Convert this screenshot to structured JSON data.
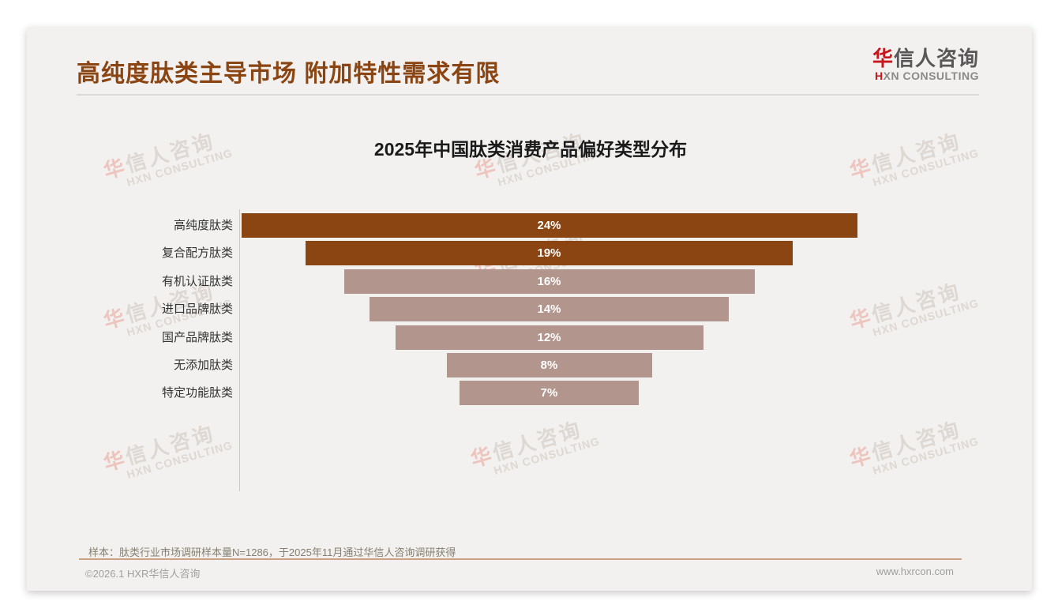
{
  "header": {
    "title": "高纯度肽类主导市场 附加特性需求有限",
    "logo_zh_first": "华",
    "logo_zh_rest": "信人咨询",
    "logo_en_first": "H",
    "logo_en_rest": "XN CONSULTING"
  },
  "chart_data": {
    "type": "bar",
    "orientation": "horizontal-centered-funnel",
    "title": "2025年中国肽类消费产品偏好类型分布",
    "categories": [
      "高纯度肽类",
      "复合配方肽类",
      "有机认证肽类",
      "进口品牌肽类",
      "国产品牌肽类",
      "无添加肽类",
      "特定功能肽类"
    ],
    "values": [
      24,
      19,
      16,
      14,
      12,
      8,
      7
    ],
    "value_labels": [
      "24%",
      "19%",
      "16%",
      "14%",
      "12%",
      "8%",
      "7%"
    ],
    "unit": "%",
    "xlim": [
      0,
      24
    ],
    "grid": false,
    "legend": false,
    "bar_colors": [
      "#8B4513",
      "#8B4513",
      "#B2958D",
      "#B2958D",
      "#B2958D",
      "#B2958D",
      "#B2958D"
    ],
    "value_label_color": "#ffffff"
  },
  "footnote": {
    "text": "样本：肽类行业市场调研样本量N=1286，于2025年11月通过华信人咨询调研获得"
  },
  "footer": {
    "copyright": "©2026.1 HXR华信人咨询",
    "website": "www.hxrcon.com"
  },
  "watermark": {
    "zh_first": "华",
    "zh_rest": "信人咨询",
    "en": "HXN CONSULTING"
  },
  "colors": {
    "title_brown": "#8B4513",
    "bar_dark": "#8B4513",
    "bar_light": "#B2958D",
    "logo_red": "#C8161D",
    "footer_line_tan": "#C9A184",
    "card_background": "#F2F1EF"
  }
}
